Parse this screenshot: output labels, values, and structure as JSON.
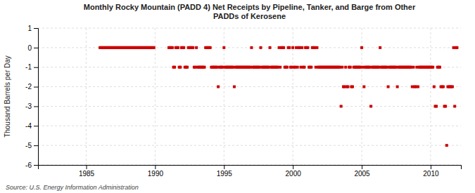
{
  "chart_data": {
    "type": "scatter",
    "title": "Monthly Rocky Mountain (PADD 4) Net Receipts by Pipeline, Tanker, and Barge from Other\nPADDs of Kerosene",
    "ylabel": "Thousand Barrels per Day",
    "annotations": [
      "Source: U.S. Energy Information Administration"
    ],
    "color": "#cc0000",
    "marker": "square",
    "grid": true,
    "xlim": [
      1981.5,
      2012.2
    ],
    "xticks": [
      1985,
      1990,
      1995,
      2000,
      2005,
      2010
    ],
    "ylim": [
      -6,
      1
    ],
    "yticks": [
      1,
      0,
      -1,
      -2,
      -3,
      -4,
      -5,
      -6
    ],
    "x": [
      1986.0,
      1986.083,
      1986.167,
      1986.25,
      1986.333,
      1986.417,
      1986.5,
      1986.583,
      1986.667,
      1986.75,
      1986.833,
      1986.917,
      1987.0,
      1987.083,
      1987.167,
      1987.25,
      1987.333,
      1987.417,
      1987.5,
      1987.583,
      1987.667,
      1987.75,
      1987.833,
      1987.917,
      1988.0,
      1988.083,
      1988.167,
      1988.25,
      1988.333,
      1988.417,
      1988.5,
      1988.583,
      1988.667,
      1988.75,
      1988.833,
      1988.917,
      1989.0,
      1989.083,
      1989.167,
      1989.25,
      1989.333,
      1989.417,
      1989.5,
      1989.583,
      1989.667,
      1989.75,
      1989.833,
      1989.917,
      1991.0,
      1991.083,
      1991.167,
      1991.25,
      1991.333,
      1991.417,
      1991.5,
      1991.583,
      1991.667,
      1991.75,
      1991.833,
      1991.917,
      1992.0,
      1992.083,
      1992.167,
      1992.25,
      1992.333,
      1992.417,
      1992.5,
      1992.583,
      1992.667,
      1992.75,
      1992.833,
      1992.917,
      1993.0,
      1993.083,
      1993.167,
      1993.25,
      1993.333,
      1993.417,
      1993.5,
      1993.583,
      1993.667,
      1993.75,
      1993.833,
      1993.917,
      1994.0,
      1994.083,
      1994.167,
      1994.25,
      1994.333,
      1994.417,
      1994.5,
      1994.583,
      1994.667,
      1994.75,
      1994.833,
      1994.917,
      1995.0,
      1995.083,
      1995.167,
      1995.25,
      1995.333,
      1995.417,
      1995.5,
      1995.583,
      1995.667,
      1995.75,
      1995.833,
      1995.917,
      1996.0,
      1996.083,
      1996.167,
      1996.25,
      1996.333,
      1996.417,
      1996.5,
      1996.583,
      1996.667,
      1996.75,
      1996.833,
      1996.917,
      1997.0,
      1997.083,
      1997.167,
      1997.25,
      1997.333,
      1997.417,
      1997.5,
      1997.583,
      1997.667,
      1997.75,
      1997.833,
      1997.917,
      1998.0,
      1998.083,
      1998.167,
      1998.25,
      1998.333,
      1998.417,
      1998.5,
      1998.583,
      1998.667,
      1998.75,
      1998.833,
      1998.917,
      1999.0,
      1999.083,
      1999.167,
      1999.25,
      1999.333,
      1999.417,
      1999.5,
      1999.583,
      1999.667,
      1999.75,
      1999.833,
      1999.917,
      2000.0,
      2000.083,
      2000.167,
      2000.25,
      2000.333,
      2000.417,
      2000.5,
      2000.583,
      2000.667,
      2000.75,
      2000.833,
      2000.917,
      2001.0,
      2001.083,
      2001.167,
      2001.25,
      2001.333,
      2001.417,
      2001.5,
      2001.583,
      2001.667,
      2001.75,
      2001.833,
      2001.917,
      2002.0,
      2002.083,
      2002.167,
      2002.25,
      2002.333,
      2002.417,
      2002.5,
      2002.583,
      2002.667,
      2002.75,
      2002.833,
      2002.917,
      2003.0,
      2003.083,
      2003.167,
      2003.25,
      2003.333,
      2003.417,
      2003.5,
      2003.583,
      2003.667,
      2003.75,
      2003.833,
      2003.917,
      2004.0,
      2004.083,
      2004.167,
      2004.25,
      2004.333,
      2004.417,
      2004.5,
      2004.583,
      2004.667,
      2004.75,
      2004.833,
      2004.917,
      2005.0,
      2005.083,
      2005.167,
      2005.25,
      2005.333,
      2005.417,
      2005.5,
      2005.583,
      2005.667,
      2005.75,
      2005.833,
      2005.917,
      2006.0,
      2006.083,
      2006.167,
      2006.25,
      2006.333,
      2006.417,
      2006.5,
      2006.583,
      2006.667,
      2006.75,
      2006.833,
      2006.917,
      2007.0,
      2007.083,
      2007.167,
      2007.25,
      2007.333,
      2007.417,
      2007.5,
      2007.583,
      2007.667,
      2007.75,
      2007.833,
      2007.917,
      2008.0,
      2008.083,
      2008.167,
      2008.25,
      2008.333,
      2008.417,
      2008.5,
      2008.583,
      2008.667,
      2008.75,
      2008.833,
      2008.917,
      2009.0,
      2009.083,
      2009.167,
      2009.25,
      2009.333,
      2009.417,
      2009.5,
      2009.583,
      2009.667,
      2009.75,
      2009.833,
      2009.917,
      2010.0,
      2010.083,
      2010.167,
      2010.25,
      2010.333,
      2010.417,
      2010.5,
      2010.583,
      2010.667,
      2010.75,
      2010.833,
      2010.917,
      2011.0,
      2011.083,
      2011.167,
      2011.25,
      2011.333,
      2011.417,
      2011.5,
      2011.583,
      2011.667,
      2011.75,
      2011.833,
      2011.917
    ],
    "values": [
      0,
      0,
      0,
      0,
      0,
      0,
      0,
      0,
      0,
      0,
      0,
      0,
      0,
      0,
      0,
      0,
      0,
      0,
      0,
      0,
      0,
      0,
      0,
      0,
      0,
      0,
      0,
      0,
      0,
      0,
      0,
      0,
      0,
      0,
      0,
      0,
      0,
      0,
      0,
      0,
      0,
      0,
      0,
      0,
      0,
      0,
      0,
      0,
      0,
      0,
      0,
      0,
      -1,
      -1,
      0,
      0,
      0,
      -1,
      -1,
      0,
      0,
      0,
      -1,
      -1,
      -1,
      0,
      0,
      0,
      0,
      0,
      -1,
      -1,
      0,
      -1,
      -1,
      -1,
      -1,
      -1,
      -1,
      -1,
      0,
      0,
      0,
      0,
      0,
      -1,
      -1,
      -1,
      -1,
      -1,
      -1,
      -2,
      -1,
      -1,
      -1,
      -1,
      0,
      -1,
      -1,
      -1,
      -1,
      -1,
      -1,
      -1,
      -1,
      -2,
      -1,
      -1,
      -1,
      -1,
      -1,
      -1,
      -1,
      -1,
      -1,
      -1,
      -1,
      -1,
      -1,
      -1,
      0,
      -1,
      -1,
      -1,
      -1,
      -1,
      -1,
      -1,
      0,
      -1,
      -1,
      -1,
      -1,
      -1,
      -1,
      -1,
      0,
      -1,
      -1,
      -1,
      -1,
      -1,
      -1,
      -1,
      0,
      -1,
      0,
      0,
      0,
      -1,
      -1,
      -1,
      0,
      0,
      -1,
      -1,
      0,
      -1,
      -1,
      0,
      -1,
      0,
      0,
      -1,
      0,
      -1,
      -1,
      0,
      0,
      0,
      -1,
      -1,
      -1,
      0,
      0,
      0,
      -1,
      0,
      -1,
      -1,
      -1,
      -1,
      -1,
      -1,
      -1,
      -1,
      -1,
      -1,
      -1,
      -1,
      -1,
      -1,
      -1,
      -1,
      -1,
      -1,
      -1,
      -1,
      -3,
      -1,
      -2,
      -2,
      -1,
      -2,
      -2,
      -1,
      -1,
      -2,
      -2,
      -1,
      -1,
      -1,
      -1,
      -1,
      -1,
      -1,
      0,
      -1,
      -2,
      -1,
      -1,
      -1,
      -1,
      -1,
      -3,
      -1,
      -1,
      -1,
      -1,
      -1,
      -1,
      -1,
      0,
      -1,
      -1,
      -1,
      -1,
      -1,
      -1,
      -2,
      -1,
      -1,
      -1,
      -1,
      -1,
      -1,
      -1,
      -2,
      -1,
      -1,
      -1,
      -1,
      -1,
      -1,
      -1,
      -1,
      -1,
      -1,
      -1,
      -1,
      -2,
      -1,
      -2,
      -2,
      -1,
      -2,
      -1,
      -1,
      -1,
      -1,
      -1,
      -1,
      -1,
      -1,
      -1,
      -1,
      -1,
      -1,
      -1,
      -2,
      -3,
      -3,
      -1,
      -1,
      -1,
      -2,
      -2,
      -2,
      -3,
      -3,
      -5,
      -2,
      -2,
      -2,
      -2,
      -2,
      0,
      -3,
      0,
      0
    ]
  }
}
